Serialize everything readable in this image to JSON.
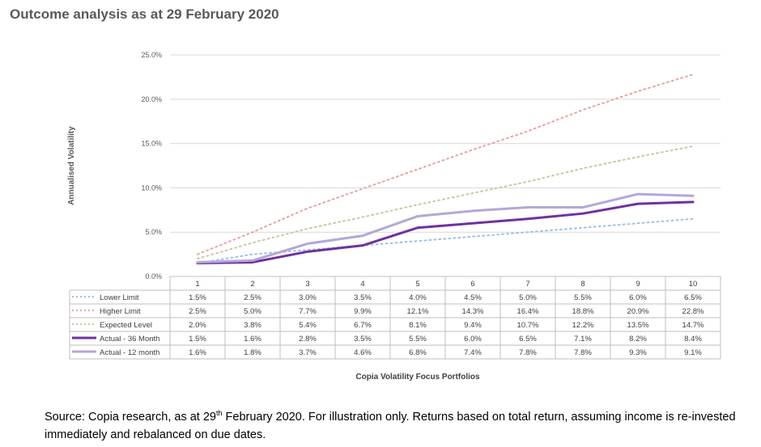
{
  "title": "Outcome analysis as at 29 February 2020",
  "colors": {
    "lower": "#9DC3E6",
    "higher": "#E6A5A5",
    "expected": "#C9C9A3",
    "actual36": "#7030A0",
    "actual12": "#B4A7D6"
  },
  "chart_data": {
    "type": "line",
    "xlabel": "Copia Volatility Focus Portfolios",
    "ylabel": "Annualised Volatility",
    "ylim": [
      0,
      25
    ],
    "y_ticks": [
      "0.0%",
      "5.0%",
      "10.0%",
      "15.0%",
      "20.0%",
      "25.0%"
    ],
    "grid": true,
    "categories": [
      "1",
      "2",
      "3",
      "4",
      "5",
      "6",
      "7",
      "8",
      "9",
      "10"
    ],
    "series": [
      {
        "name": "Lower Limit",
        "style": "dotted",
        "values": [
          1.5,
          2.5,
          3.0,
          3.5,
          4.0,
          4.5,
          5.0,
          5.5,
          6.0,
          6.5
        ],
        "labels": [
          "1.5%",
          "2.5%",
          "3.0%",
          "3.5%",
          "4.0%",
          "4.5%",
          "5.0%",
          "5.5%",
          "6.0%",
          "6.5%"
        ]
      },
      {
        "name": "Higher Limit",
        "style": "dotted",
        "values": [
          2.5,
          5.0,
          7.7,
          9.9,
          12.1,
          14.3,
          16.4,
          18.8,
          20.9,
          22.8
        ],
        "labels": [
          "2.5%",
          "5.0%",
          "7.7%",
          "9.9%",
          "12.1%",
          "14.3%",
          "16.4%",
          "18.8%",
          "20.9%",
          "22.8%"
        ]
      },
      {
        "name": "Expected Level",
        "style": "dotted",
        "values": [
          2.0,
          3.8,
          5.4,
          6.7,
          8.1,
          9.4,
          10.7,
          12.2,
          13.5,
          14.7
        ],
        "labels": [
          "2.0%",
          "3.8%",
          "5.4%",
          "6.7%",
          "8.1%",
          "9.4%",
          "10.7%",
          "12.2%",
          "13.5%",
          "14.7%"
        ]
      },
      {
        "name": "Actual - 36 Month",
        "style": "solid",
        "values": [
          1.5,
          1.6,
          2.8,
          3.5,
          5.5,
          6.0,
          6.5,
          7.1,
          8.2,
          8.4
        ],
        "labels": [
          "1.5%",
          "1.6%",
          "2.8%",
          "3.5%",
          "5.5%",
          "6.0%",
          "6.5%",
          "7.1%",
          "8.2%",
          "8.4%"
        ]
      },
      {
        "name": "Actual - 12 month",
        "style": "solid",
        "values": [
          1.6,
          1.8,
          3.7,
          4.6,
          6.8,
          7.4,
          7.8,
          7.8,
          9.3,
          9.1
        ],
        "labels": [
          "1.6%",
          "1.8%",
          "3.7%",
          "4.6%",
          "6.8%",
          "7.4%",
          "7.8%",
          "7.8%",
          "9.3%",
          "9.1%"
        ]
      }
    ]
  },
  "source": {
    "prefix": "Source: Copia research, as at 29",
    "sup": "th",
    "suffix": " February 2020.  For illustration only.  Returns based on total return, assuming income is re-invested immediately and rebalanced on due dates."
  }
}
